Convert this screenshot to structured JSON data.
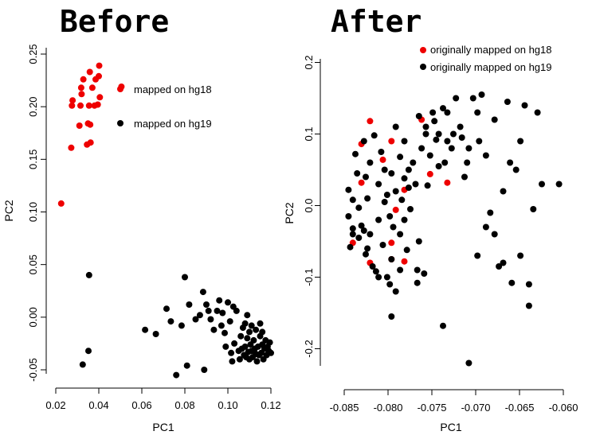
{
  "colors": {
    "red": "#ee0000",
    "black": "#000000"
  },
  "chart_data": [
    {
      "type": "scatter",
      "title": "Before",
      "xlabel": "PC1",
      "ylabel": "PC2",
      "xlim": [
        0.02,
        0.12
      ],
      "ylim": [
        -0.05,
        0.25
      ],
      "xticks": [
        "0.02",
        "0.04",
        "0.06",
        "0.08",
        "0.10",
        "0.12"
      ],
      "yticks": [
        "-0.05",
        "0.00",
        "0.05",
        "0.10",
        "0.15",
        "0.20",
        "0.25"
      ],
      "legend_position": "top-right",
      "series": [
        {
          "name": "mapped on hg18",
          "color": "#ee0000",
          "points": [
            [
              0.0225,
              0.108
            ],
            [
              0.0272,
              0.161
            ],
            [
              0.0275,
              0.201
            ],
            [
              0.0278,
              0.206
            ],
            [
              0.031,
              0.182
            ],
            [
              0.0315,
              0.201
            ],
            [
              0.0318,
              0.218
            ],
            [
              0.032,
              0.212
            ],
            [
              0.0328,
              0.226
            ],
            [
              0.0345,
              0.164
            ],
            [
              0.035,
              0.184
            ],
            [
              0.0355,
              0.201
            ],
            [
              0.0358,
              0.233
            ],
            [
              0.036,
              0.183
            ],
            [
              0.0362,
              0.166
            ],
            [
              0.037,
              0.218
            ],
            [
              0.038,
              0.201
            ],
            [
              0.0385,
              0.226
            ],
            [
              0.0395,
              0.202
            ],
            [
              0.04,
              0.229
            ],
            [
              0.0402,
              0.239
            ],
            [
              0.0405,
              0.209
            ],
            [
              0.0505,
              0.219
            ]
          ]
        },
        {
          "name": "mapped on hg19",
          "color": "#000000",
          "points": [
            [
              0.0355,
              0.04
            ],
            [
              0.0352,
              -0.032
            ],
            [
              0.0325,
              -0.045
            ],
            [
              0.0615,
              -0.012
            ],
            [
              0.0665,
              -0.016
            ],
            [
              0.0715,
              0.008
            ],
            [
              0.0735,
              -0.004
            ],
            [
              0.076,
              -0.055
            ],
            [
              0.0785,
              -0.008
            ],
            [
              0.08,
              0.038
            ],
            [
              0.081,
              -0.046
            ],
            [
              0.082,
              0.012
            ],
            [
              0.085,
              -0.002
            ],
            [
              0.087,
              0.002
            ],
            [
              0.0885,
              0.024
            ],
            [
              0.089,
              -0.05
            ],
            [
              0.09,
              0.012
            ],
            [
              0.091,
              0.006
            ],
            [
              0.092,
              -0.002
            ],
            [
              0.0935,
              -0.012
            ],
            [
              0.095,
              0.006
            ],
            [
              0.096,
              0.016
            ],
            [
              0.097,
              -0.008
            ],
            [
              0.0975,
              0.004
            ],
            [
              0.0985,
              -0.015
            ],
            [
              0.099,
              -0.028
            ],
            [
              0.1,
              0.014
            ],
            [
              0.101,
              -0.004
            ],
            [
              0.1015,
              -0.034
            ],
            [
              0.102,
              -0.042
            ],
            [
              0.1025,
              0.01
            ],
            [
              0.103,
              -0.025
            ],
            [
              0.104,
              0.006
            ],
            [
              0.105,
              -0.032
            ],
            [
              0.1055,
              -0.04
            ],
            [
              0.106,
              -0.018
            ],
            [
              0.1065,
              -0.03
            ],
            [
              0.107,
              -0.01
            ],
            [
              0.1075,
              -0.036
            ],
            [
              0.108,
              -0.028
            ],
            [
              0.1085,
              -0.038
            ],
            [
              0.109,
              -0.02
            ],
            [
              0.1095,
              -0.033
            ],
            [
              0.11,
              -0.04
            ],
            [
              0.1105,
              -0.026
            ],
            [
              0.111,
              -0.032
            ],
            [
              0.1115,
              -0.038
            ],
            [
              0.112,
              -0.022
            ],
            [
              0.1125,
              -0.03
            ],
            [
              0.113,
              -0.035
            ],
            [
              0.1135,
              -0.042
            ],
            [
              0.114,
              -0.028
            ],
            [
              0.1145,
              -0.036
            ],
            [
              0.115,
              -0.018
            ],
            [
              0.1155,
              -0.034
            ],
            [
              0.116,
              -0.026
            ],
            [
              0.1165,
              -0.04
            ],
            [
              0.117,
              -0.03
            ],
            [
              0.1175,
              -0.022
            ],
            [
              0.118,
              -0.036
            ],
            [
              0.1185,
              -0.028
            ],
            [
              0.119,
              -0.032
            ],
            [
              0.1195,
              -0.024
            ],
            [
              0.12,
              -0.034
            ],
            [
              0.111,
              -0.008
            ],
            [
              0.109,
              0.002
            ],
            [
              0.113,
              -0.012
            ],
            [
              0.115,
              -0.006
            ],
            [
              0.11,
              -0.014
            ],
            [
              0.108,
              -0.006
            ],
            [
              0.116,
              -0.014
            ]
          ]
        }
      ]
    },
    {
      "type": "scatter",
      "title": "After",
      "xlabel": "PC1",
      "ylabel": "PC2",
      "xlim": [
        -0.0855,
        -0.06
      ],
      "ylim": [
        -0.215,
        0.205
      ],
      "xticks": [
        "-0.085",
        "-0.080",
        "-0.075",
        "-0.070",
        "-0.065",
        "-0.060"
      ],
      "yticks": [
        "-0.2",
        "-0.1",
        "0.0",
        "0.1",
        "0.2"
      ],
      "legend_position": "top-right",
      "series": [
        {
          "name": "originally mapped on hg18",
          "color": "#ee0000",
          "points": [
            [
              -0.0845,
              -0.052
            ],
            [
              -0.0835,
              0.086
            ],
            [
              -0.0835,
              0.032
            ],
            [
              -0.0825,
              0.118
            ],
            [
              -0.0825,
              -0.08
            ],
            [
              -0.081,
              0.064
            ],
            [
              -0.08,
              -0.052
            ],
            [
              -0.08,
              0.09
            ],
            [
              -0.08,
              -0.075
            ],
            [
              -0.0795,
              -0.006
            ],
            [
              -0.0785,
              -0.078
            ],
            [
              -0.0785,
              0.022
            ],
            [
              -0.0765,
              0.12
            ],
            [
              -0.0755,
              0.044
            ],
            [
              -0.0735,
              0.032
            ]
          ]
        },
        {
          "name": "originally mapped on hg19",
          "color": "#000000",
          "points": [
            [
              -0.085,
              0.022
            ],
            [
              -0.0845,
              0.008
            ],
            [
              -0.085,
              -0.015
            ],
            [
              -0.0845,
              -0.032
            ],
            [
              -0.084,
              0.045
            ],
            [
              -0.0842,
              0.072
            ],
            [
              -0.0848,
              -0.058
            ],
            [
              -0.0838,
              -0.003
            ],
            [
              -0.0835,
              -0.028
            ],
            [
              -0.0832,
              0.09
            ],
            [
              -0.083,
              0.04
            ],
            [
              -0.083,
              -0.068
            ],
            [
              -0.0825,
              -0.04
            ],
            [
              -0.0828,
              0.01
            ],
            [
              -0.0825,
              0.06
            ],
            [
              -0.082,
              0.098
            ],
            [
              -0.0818,
              -0.092
            ],
            [
              -0.0815,
              -0.02
            ],
            [
              -0.0815,
              0.03
            ],
            [
              -0.0812,
              0.075
            ],
            [
              -0.081,
              -0.055
            ],
            [
              -0.0808,
              0.05
            ],
            [
              -0.0805,
              0.015
            ],
            [
              -0.0805,
              -0.1
            ],
            [
              -0.0802,
              -0.11
            ],
            [
              -0.08,
              -0.075
            ],
            [
              -0.08,
              0.045
            ],
            [
              -0.0798,
              -0.03
            ],
            [
              -0.0795,
              0.11
            ],
            [
              -0.0795,
              -0.12
            ],
            [
              -0.079,
              0.068
            ],
            [
              -0.079,
              -0.04
            ],
            [
              -0.0788,
              0.008
            ],
            [
              -0.0785,
              0.038
            ],
            [
              -0.0785,
              0.09
            ],
            [
              -0.0782,
              -0.062
            ],
            [
              -0.078,
              0.025
            ],
            [
              -0.0778,
              -0.005
            ],
            [
              -0.0775,
              0.06
            ],
            [
              -0.077,
              -0.09
            ],
            [
              -0.077,
              -0.108
            ],
            [
              -0.0768,
              0.125
            ],
            [
              -0.0765,
              0.08
            ],
            [
              -0.0762,
              -0.095
            ],
            [
              -0.076,
              0.1
            ],
            [
              -0.0758,
              0.028
            ],
            [
              -0.0755,
              0.07
            ],
            [
              -0.075,
              0.118
            ],
            [
              -0.0748,
              0.092
            ],
            [
              -0.0745,
              0.055
            ],
            [
              -0.074,
              0.136
            ],
            [
              -0.0735,
              0.13
            ],
            [
              -0.073,
              0.08
            ],
            [
              -0.0725,
              0.15
            ],
            [
              -0.072,
              0.11
            ],
            [
              -0.0715,
              0.04
            ],
            [
              -0.0712,
              0.06
            ],
            [
              -0.0705,
              0.15
            ],
            [
              -0.07,
              0.13
            ],
            [
              -0.0698,
              0.09
            ],
            [
              -0.0695,
              0.155
            ],
            [
              -0.069,
              -0.03
            ],
            [
              -0.0685,
              -0.01
            ],
            [
              -0.068,
              0.12
            ],
            [
              -0.0675,
              -0.085
            ],
            [
              -0.067,
              -0.08
            ],
            [
              -0.0665,
              0.145
            ],
            [
              -0.066,
              -0.108
            ],
            [
              -0.0655,
              0.05
            ],
            [
              -0.065,
              0.09
            ],
            [
              -0.0645,
              0.14
            ],
            [
              -0.064,
              -0.14
            ],
            [
              -0.0635,
              -0.005
            ],
            [
              -0.0625,
              0.03
            ],
            [
              -0.0605,
              0.03
            ],
            [
              -0.074,
              -0.168
            ],
            [
              -0.071,
              -0.22
            ],
            [
              -0.08,
              -0.155
            ],
            [
              -0.0845,
              -0.04
            ],
            [
              -0.0838,
              -0.045
            ],
            [
              -0.0832,
              -0.035
            ],
            [
              -0.0828,
              -0.06
            ],
            [
              -0.0822,
              -0.085
            ],
            [
              -0.0815,
              -0.1
            ],
            [
              -0.0808,
              0.005
            ],
            [
              -0.0802,
              -0.015
            ],
            [
              -0.0795,
              0.02
            ],
            [
              -0.079,
              -0.09
            ],
            [
              -0.0785,
              -0.02
            ],
            [
              -0.078,
              0.05
            ],
            [
              -0.0772,
              0.03
            ],
            [
              -0.0768,
              -0.05
            ],
            [
              -0.076,
              0.11
            ],
            [
              -0.0752,
              0.13
            ],
            [
              -0.0745,
              0.1
            ],
            [
              -0.0738,
              0.06
            ],
            [
              -0.0735,
              0.09
            ],
            [
              -0.0728,
              0.1
            ],
            [
              -0.0718,
              0.095
            ],
            [
              -0.071,
              0.08
            ],
            [
              -0.07,
              -0.07
            ],
            [
              -0.069,
              0.07
            ],
            [
              -0.068,
              -0.04
            ],
            [
              -0.067,
              0.02
            ],
            [
              -0.0662,
              0.06
            ],
            [
              -0.065,
              -0.07
            ],
            [
              -0.064,
              -0.11
            ],
            [
              -0.063,
              0.13
            ]
          ]
        }
      ]
    }
  ]
}
